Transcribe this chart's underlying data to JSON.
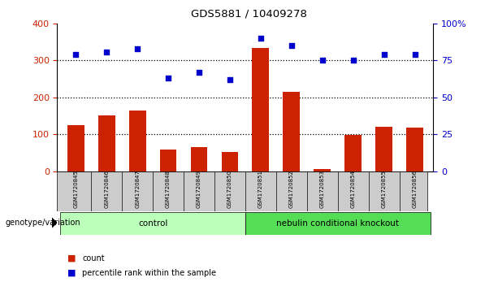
{
  "title": "GDS5881 / 10409278",
  "samples": [
    "GSM1720845",
    "GSM1720846",
    "GSM1720847",
    "GSM1720848",
    "GSM1720849",
    "GSM1720850",
    "GSM1720851",
    "GSM1720852",
    "GSM1720853",
    "GSM1720854",
    "GSM1720855",
    "GSM1720856"
  ],
  "counts": [
    125,
    150,
    165,
    58,
    65,
    52,
    335,
    215,
    5,
    98,
    120,
    118
  ],
  "percentiles": [
    79,
    81,
    83,
    63,
    67,
    62,
    90,
    85,
    75,
    75,
    79,
    79
  ],
  "groups": [
    {
      "label": "control",
      "start": 0,
      "end": 6
    },
    {
      "label": "nebulin conditional knockout",
      "start": 6,
      "end": 12
    }
  ],
  "bar_color": "#cc2200",
  "dot_color": "#0000cc",
  "left_ylim": [
    0,
    400
  ],
  "left_yticks": [
    0,
    100,
    200,
    300,
    400
  ],
  "right_ylim": [
    0,
    100
  ],
  "right_yticks": [
    0,
    25,
    50,
    75,
    100
  ],
  "right_yticklabels": [
    "0",
    "25",
    "50",
    "75",
    "100%"
  ],
  "genotype_label": "genotype/variation",
  "legend_count": "count",
  "legend_percentile": "percentile rank within the sample",
  "group_color_control": "#bbffbb",
  "group_color_ko": "#55dd55",
  "sample_box_color": "#cccccc",
  "dot_line_color": "#000000",
  "dotted_lines": [
    100,
    200,
    300
  ]
}
